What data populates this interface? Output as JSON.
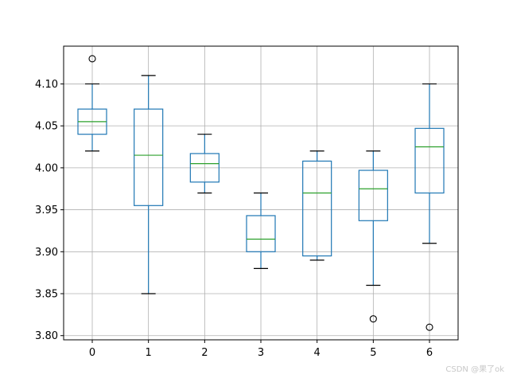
{
  "chart_data": {
    "type": "box",
    "title": "",
    "xlabel": "",
    "ylabel": "",
    "categories": [
      "0",
      "1",
      "2",
      "3",
      "4",
      "5",
      "6"
    ],
    "ylim": [
      3.795,
      4.145
    ],
    "yticks": [
      "3.80",
      "3.85",
      "3.90",
      "3.95",
      "4.00",
      "4.05",
      "4.10"
    ],
    "grid": true,
    "boxes": [
      {
        "category": "0",
        "whislo": 4.02,
        "q1": 4.04,
        "med": 4.055,
        "q3": 4.07,
        "whishi": 4.1,
        "fliers": [
          4.13
        ]
      },
      {
        "category": "1",
        "whislo": 3.85,
        "q1": 3.955,
        "med": 4.015,
        "q3": 4.07,
        "whishi": 4.11,
        "fliers": []
      },
      {
        "category": "2",
        "whislo": 3.97,
        "q1": 3.983,
        "med": 4.005,
        "q3": 4.017,
        "whishi": 4.04,
        "fliers": []
      },
      {
        "category": "3",
        "whislo": 3.88,
        "q1": 3.9,
        "med": 3.915,
        "q3": 3.943,
        "whishi": 3.97,
        "fliers": []
      },
      {
        "category": "4",
        "whislo": 3.89,
        "q1": 3.895,
        "med": 3.97,
        "q3": 4.008,
        "whishi": 4.02,
        "fliers": []
      },
      {
        "category": "5",
        "whislo": 3.86,
        "q1": 3.937,
        "med": 3.975,
        "q3": 3.997,
        "whishi": 4.02,
        "fliers": [
          3.82
        ]
      },
      {
        "category": "6",
        "whislo": 3.91,
        "q1": 3.97,
        "med": 4.025,
        "q3": 4.047,
        "whishi": 4.1,
        "fliers": [
          3.81
        ]
      }
    ],
    "colors": {
      "box": "#1f77b4",
      "median": "#2ca02c",
      "whisker": "#1f77b4",
      "cap": "#000000",
      "flier": "#000000",
      "grid": "#b0b0b0"
    }
  },
  "watermark": "CSDN @果了ok"
}
